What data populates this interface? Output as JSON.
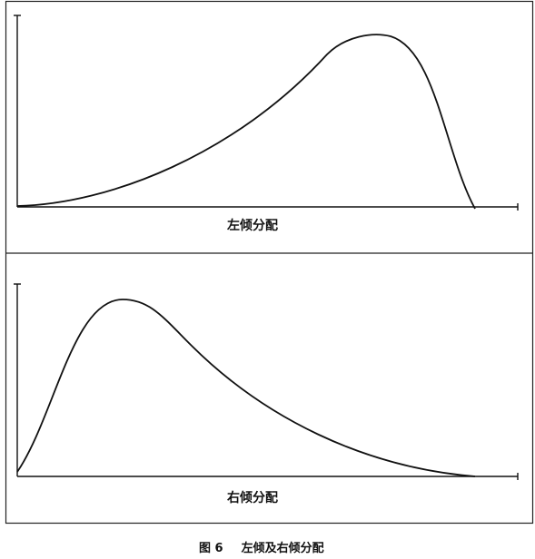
{
  "panels": [
    {
      "label": "左倾分配",
      "skew": "left"
    },
    {
      "label": "右倾分配",
      "skew": "right"
    }
  ],
  "caption": {
    "number": "图 6",
    "text": "左倾及右倾分配"
  }
}
